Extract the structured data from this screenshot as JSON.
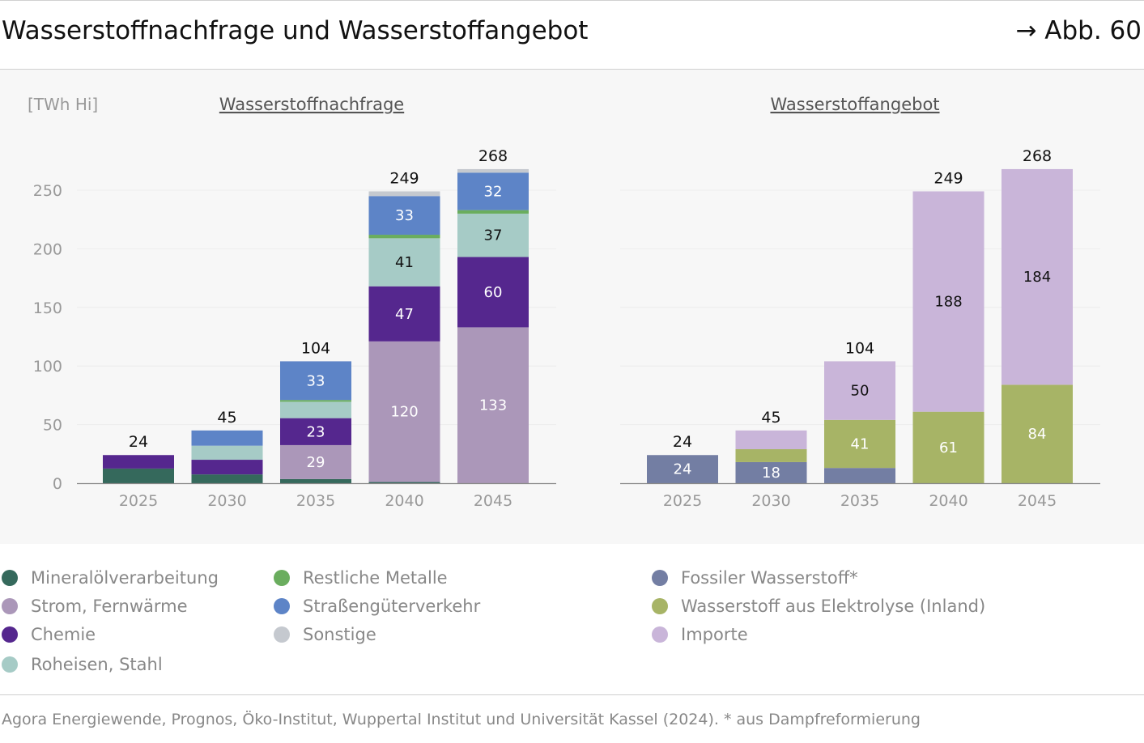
{
  "header": {
    "title": "Wasserstoffnachfrage und Wasserstoffangebot",
    "figure_ref": "→ Abb. 60"
  },
  "unit_label": "[TWh Hi]",
  "source": "Agora Energiewende, Prognos, Öko-Institut, Wuppertal Institut und Universität Kassel (2024). * aus Dampfreformierung",
  "colors": {
    "mineraloel": "#35695c",
    "strom": "#ab97b9",
    "chemie": "#55278e",
    "roheisen": "#a6cbc6",
    "metalle": "#6aad5e",
    "verkehr": "#5d84c7",
    "sonstige": "#c5c9cf",
    "fossil": "#737ea3",
    "elektrolyse": "#a7b466",
    "importe": "#c9b5d9"
  },
  "legend": [
    {
      "label": "Mineralölverarbeitung",
      "color": "#35695c"
    },
    {
      "label": "Restliche Metalle",
      "color": "#6aad5e"
    },
    {
      "label": "Fossiler Wasserstoff*",
      "color": "#737ea3"
    },
    {
      "label": "Strom, Fernwärme",
      "color": "#ab97b9"
    },
    {
      "label": "Straßengüterverkehr",
      "color": "#5d84c7"
    },
    {
      "label": "Wasserstoff aus Elektrolyse (Inland)",
      "color": "#a7b466"
    },
    {
      "label": "Chemie",
      "color": "#55278e"
    },
    {
      "label": "Sonstige",
      "color": "#c5c9cf"
    },
    {
      "label": "Importe",
      "color": "#c9b5d9"
    },
    {
      "label": "Roheisen, Stahl",
      "color": "#a6cbc6"
    }
  ],
  "chart_data": [
    {
      "type": "bar",
      "stacked": true,
      "title": "Wasserstoffnachfrage",
      "ylabel": "[TWh Hi]",
      "ylim": [
        0,
        280
      ],
      "yticks": [
        0,
        50,
        100,
        150,
        200,
        250
      ],
      "categories": [
        "2025",
        "2030",
        "2035",
        "2040",
        "2045"
      ],
      "totals": [
        24,
        45,
        104,
        249,
        268
      ],
      "series": [
        {
          "name": "Mineralölverarbeitung",
          "color": "#35695c",
          "values": [
            12.5,
            7.5,
            3.5,
            1,
            0
          ],
          "labels": [
            null,
            null,
            null,
            null,
            null
          ],
          "label_color": "#ffffff"
        },
        {
          "name": "Strom, Fernwärme",
          "color": "#ab97b9",
          "values": [
            0,
            0,
            29,
            120,
            133
          ],
          "labels": [
            null,
            null,
            "29",
            "120",
            "133"
          ],
          "label_color": "#ffffff"
        },
        {
          "name": "Chemie",
          "color": "#55278e",
          "values": [
            11.5,
            12.5,
            23,
            47,
            60
          ],
          "labels": [
            null,
            null,
            "23",
            "47",
            "60"
          ],
          "label_color": "#ffffff"
        },
        {
          "name": "Roheisen, Stahl",
          "color": "#a6cbc6",
          "values": [
            0,
            12,
            14,
            41,
            37
          ],
          "labels": [
            null,
            null,
            null,
            "41",
            "37"
          ],
          "label_color": "#111111"
        },
        {
          "name": "Restliche Metalle",
          "color": "#6aad5e",
          "values": [
            0,
            0,
            1.5,
            3,
            3
          ],
          "labels": [
            null,
            null,
            null,
            null,
            null
          ],
          "label_color": "#ffffff"
        },
        {
          "name": "Straßengüterverkehr",
          "color": "#5d84c7",
          "values": [
            0,
            13,
            33,
            33,
            32
          ],
          "labels": [
            null,
            null,
            "33",
            "33",
            "32"
          ],
          "label_color": "#ffffff"
        },
        {
          "name": "Sonstige",
          "color": "#c5c9cf",
          "values": [
            0,
            0,
            0,
            4,
            3
          ],
          "labels": [
            null,
            null,
            null,
            null,
            null
          ],
          "label_color": "#111111"
        }
      ]
    },
    {
      "type": "bar",
      "stacked": true,
      "title": "Wasserstoffangebot",
      "ylim": [
        0,
        280
      ],
      "categories": [
        "2025",
        "2030",
        "2035",
        "2040",
        "2045"
      ],
      "totals": [
        24,
        45,
        104,
        249,
        268
      ],
      "series": [
        {
          "name": "Fossiler Wasserstoff*",
          "color": "#737ea3",
          "values": [
            24,
            18,
            13,
            0,
            0
          ],
          "labels": [
            "24",
            "18",
            null,
            null,
            null
          ],
          "label_color": "#ffffff"
        },
        {
          "name": "Wasserstoff aus Elektrolyse (Inland)",
          "color": "#a7b466",
          "values": [
            0,
            11,
            41,
            61,
            84
          ],
          "labels": [
            null,
            null,
            "41",
            "61",
            "84"
          ],
          "label_color": "#ffffff"
        },
        {
          "name": "Importe",
          "color": "#c9b5d9",
          "values": [
            0,
            16,
            50,
            188,
            184
          ],
          "labels": [
            null,
            null,
            "50",
            "188",
            "184"
          ],
          "label_color": "#111111"
        }
      ]
    }
  ]
}
